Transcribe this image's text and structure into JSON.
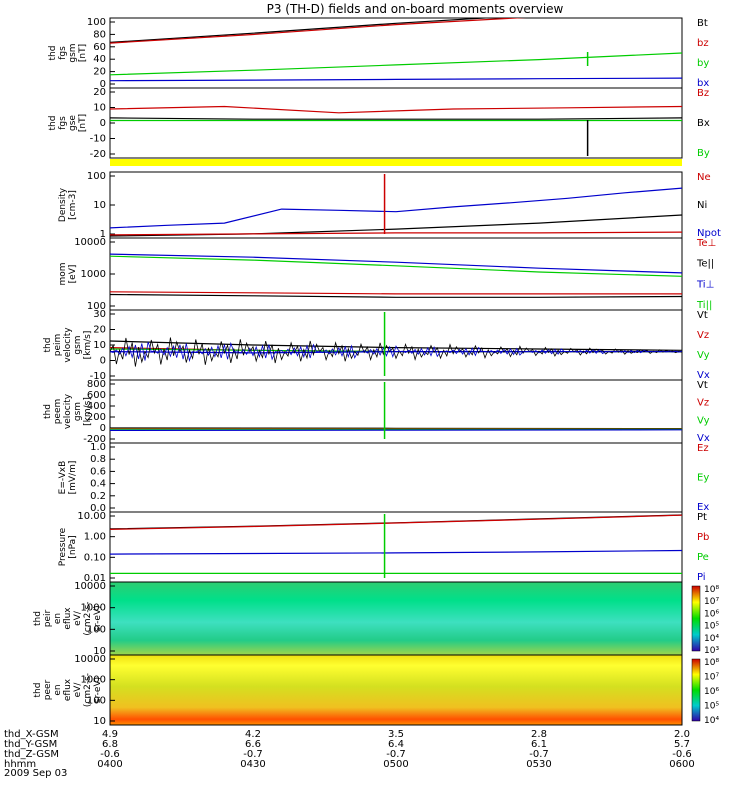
{
  "title": "P3 (TH-D) fields and on-board moments overview",
  "date_label": "2009 Sep 03",
  "colorbar_ticks": {
    "ion": [
      "10⁸",
      "10⁷",
      "10⁶",
      "10⁵",
      "10⁴",
      "10³"
    ],
    "electron": [
      "10⁸",
      "10⁷",
      "10⁶",
      "10⁵",
      "10⁴"
    ]
  },
  "chart_data": [
    {
      "id": "fgs",
      "type": "line",
      "ylabel": [
        "thd",
        "fgs",
        "gsm",
        "[nT]"
      ],
      "ylim": [
        0,
        100
      ],
      "ytick_labels": [
        "100",
        "80",
        "60",
        "40",
        "20",
        "0"
      ],
      "legend": [
        {
          "name": "Bt",
          "color": "#000000"
        },
        {
          "name": "bz",
          "color": "#cc0000"
        },
        {
          "name": "by",
          "color": "#00cc00"
        },
        {
          "name": "bx",
          "color": "#0000cc"
        }
      ],
      "series": [
        {
          "name": "Bt",
          "color": "#000000",
          "x": [
            0,
            0.25,
            0.5,
            0.75,
            1
          ],
          "y": [
            66,
            80,
            95,
            108,
            120
          ]
        },
        {
          "name": "bz",
          "color": "#cc0000",
          "x": [
            0,
            0.25,
            0.5,
            0.75,
            1
          ],
          "y": [
            65,
            78,
            93,
            105,
            118
          ]
        },
        {
          "name": "by",
          "color": "#00cc00",
          "x": [
            0,
            0.25,
            0.5,
            0.75,
            1
          ],
          "y": [
            17,
            24,
            32,
            40,
            50
          ]
        },
        {
          "name": "bx",
          "color": "#0000cc",
          "x": [
            0,
            0.25,
            0.5,
            0.75,
            1
          ],
          "y": [
            8,
            9,
            10,
            11,
            12
          ]
        }
      ]
    },
    {
      "id": "fge",
      "type": "line",
      "ylabel": [
        "thd",
        "fgs",
        "gse",
        "[nT]"
      ],
      "ylim": [
        -30,
        22
      ],
      "ytick_labels": [
        "20",
        "10",
        "0",
        "-10",
        "-20"
      ],
      "legend": [
        {
          "name": "Bz",
          "color": "#cc0000"
        },
        {
          "name": "Bx",
          "color": "#000000"
        },
        {
          "name": "By",
          "color": "#00cc00"
        }
      ],
      "series": [
        {
          "name": "Bz",
          "color": "#cc0000",
          "x": [
            0,
            0.2,
            0.4,
            0.6,
            0.8,
            1
          ],
          "y": [
            7,
            9,
            4,
            7,
            8,
            9
          ]
        },
        {
          "name": "Bx",
          "color": "#000000",
          "x": [
            0,
            0.25,
            0.5,
            0.75,
            1
          ],
          "y": [
            0,
            -1,
            -1,
            -1,
            0
          ]
        },
        {
          "name": "By",
          "color": "#00cc00",
          "x": [
            0,
            0.25,
            0.5,
            0.75,
            1
          ],
          "y": [
            -2,
            -2,
            -2,
            -2,
            -2
          ]
        }
      ]
    },
    {
      "id": "density",
      "type": "line",
      "log": true,
      "ylabel": [
        "Density",
        "[cm-3]"
      ],
      "ylim": [
        1,
        200
      ],
      "ytick_labels": [
        "100",
        "10",
        "1"
      ],
      "legend": [
        {
          "name": "Ne",
          "color": "#cc0000"
        },
        {
          "name": "Ni",
          "color": "#000000"
        },
        {
          "name": "Npot",
          "color": "#0000cc"
        }
      ],
      "series": [
        {
          "name": "Npot",
          "color": "#0000cc",
          "x": [
            0,
            0.1,
            0.2,
            0.3,
            0.4,
            0.5,
            0.6,
            0.7,
            0.8,
            0.9,
            1
          ],
          "y": [
            2,
            2.5,
            3,
            10,
            9,
            8,
            12,
            17,
            25,
            40,
            60
          ]
        },
        {
          "name": "Ni",
          "color": "#000000",
          "x": [
            0,
            0.25,
            0.5,
            0.75,
            1
          ],
          "y": [
            1,
            1.2,
            1.8,
            3,
            6
          ]
        },
        {
          "name": "Ne",
          "color": "#cc0000",
          "x": [
            0,
            0.25,
            0.5,
            0.75,
            1
          ],
          "y": [
            1.1,
            1.2,
            1.3,
            1.3,
            1.4
          ]
        }
      ]
    },
    {
      "id": "temp",
      "type": "line",
      "log": true,
      "ylabel": [
        "mom",
        "[eV]"
      ],
      "ylim": [
        30,
        10000
      ],
      "ytick_labels": [
        "10000",
        "1000",
        "100"
      ],
      "legend": [
        {
          "name": "Te⊥",
          "color": "#cc0000"
        },
        {
          "name": "Te||",
          "color": "#000000"
        },
        {
          "name": "Ti⊥",
          "color": "#0000cc"
        },
        {
          "name": "Ti||",
          "color": "#00cc00"
        }
      ],
      "series": [
        {
          "name": "Ti⊥",
          "color": "#0000cc",
          "x": [
            0,
            0.25,
            0.5,
            0.75,
            1
          ],
          "y": [
            3000,
            2300,
            1500,
            900,
            600
          ]
        },
        {
          "name": "Ti||",
          "color": "#00cc00",
          "x": [
            0,
            0.25,
            0.5,
            0.75,
            1
          ],
          "y": [
            2500,
            1800,
            1100,
            650,
            450
          ]
        },
        {
          "name": "Te⊥",
          "color": "#cc0000",
          "x": [
            0,
            0.25,
            0.5,
            0.75,
            1
          ],
          "y": [
            120,
            110,
            100,
            100,
            100
          ]
        },
        {
          "name": "Te||",
          "color": "#000000",
          "x": [
            0,
            0.25,
            0.5,
            0.75,
            1
          ],
          "y": [
            95,
            85,
            75,
            75,
            80
          ]
        }
      ]
    },
    {
      "id": "vel",
      "type": "line",
      "ylabel": [
        "thd",
        "peim",
        "velocity",
        "gsm",
        "[km/s]"
      ],
      "ylim": [
        -20,
        30
      ],
      "ytick_labels": [
        "30",
        "20",
        "10",
        "0",
        "-10"
      ],
      "legend": [
        {
          "name": "Vt",
          "color": "#000000"
        },
        {
          "name": "Vz",
          "color": "#cc0000"
        },
        {
          "name": "Vy",
          "color": "#00cc00"
        },
        {
          "name": "Vx",
          "color": "#0000cc"
        }
      ],
      "series": [
        {
          "name": "Vt",
          "color": "#000000",
          "x": [
            0,
            0.25,
            0.5,
            0.75,
            1
          ],
          "y": [
            8,
            5,
            3,
            2,
            1
          ]
        },
        {
          "name": "Vz",
          "color": "#cc0000",
          "x": [
            0,
            0.25,
            0.5,
            0.75,
            1
          ],
          "y": [
            3,
            1,
            0,
            0,
            0
          ]
        },
        {
          "name": "Vy",
          "color": "#00cc00",
          "x": [
            0,
            0.25,
            0.5,
            0.75,
            1
          ],
          "y": [
            2,
            1,
            0,
            0,
            0
          ]
        },
        {
          "name": "Vx",
          "color": "#0000cc",
          "x": [
            0,
            0.25,
            0.5,
            0.75,
            1
          ],
          "y": [
            0,
            -1,
            0,
            0,
            0
          ]
        }
      ]
    },
    {
      "id": "vel2",
      "type": "line",
      "ylabel": [
        "thd",
        "peem",
        "velocity",
        "gsm",
        "[km/s]"
      ],
      "ylim": [
        -200,
        800
      ],
      "ytick_labels": [
        "800",
        "600",
        "400",
        "200",
        "0",
        "-200"
      ],
      "legend": [
        {
          "name": "Vt",
          "color": "#000000"
        },
        {
          "name": "Vz",
          "color": "#cc0000"
        },
        {
          "name": "Vy",
          "color": "#00cc00"
        },
        {
          "name": "Vx",
          "color": "#0000cc"
        }
      ],
      "series": [
        {
          "name": "Vt",
          "color": "#000000",
          "x": [
            0,
            0.5,
            1
          ],
          "y": [
            20,
            15,
            10
          ]
        },
        {
          "name": "Vz",
          "color": "#cc0000",
          "x": [
            0,
            0.5,
            1
          ],
          "y": [
            10,
            8,
            5
          ]
        },
        {
          "name": "Vy",
          "color": "#00cc00",
          "x": [
            0,
            0.5,
            1
          ],
          "y": [
            0,
            0,
            0
          ]
        },
        {
          "name": "Vx",
          "color": "#0000cc",
          "x": [
            0,
            0.5,
            1
          ],
          "y": [
            -20,
            -15,
            -10
          ]
        }
      ]
    },
    {
      "id": "efield",
      "type": "line",
      "ylabel": [
        "E=-VxB",
        "[mV/m]"
      ],
      "ylim": [
        0,
        1
      ],
      "ytick_labels": [
        "1.0",
        "0.8",
        "0.6",
        "0.4",
        "0.2",
        "0.0"
      ],
      "legend": [
        {
          "name": "Ez",
          "color": "#cc0000"
        },
        {
          "name": "Ey",
          "color": "#00cc00"
        },
        {
          "name": "Ex",
          "color": "#0000cc"
        }
      ],
      "series": []
    },
    {
      "id": "pressure",
      "type": "line",
      "log": true,
      "ylabel": [
        "Pressure",
        "[nPa]"
      ],
      "ylim": [
        0.01,
        10
      ],
      "ytick_labels": [
        "10.00",
        "1.00",
        "0.10",
        "0.01"
      ],
      "legend": [
        {
          "name": "Pt",
          "color": "#000000"
        },
        {
          "name": "Pb",
          "color": "#cc0000"
        },
        {
          "name": "Pe",
          "color": "#00cc00"
        },
        {
          "name": "Pi",
          "color": "#0000cc"
        }
      ],
      "series": [
        {
          "name": "Pt",
          "color": "#000000",
          "x": [
            0,
            0.25,
            0.5,
            0.75,
            1
          ],
          "y": [
            2.1,
            2.8,
            4,
            6,
            9
          ]
        },
        {
          "name": "Pb",
          "color": "#cc0000",
          "x": [
            0,
            0.25,
            0.5,
            0.75,
            1
          ],
          "y": [
            2,
            2.7,
            3.9,
            5.8,
            8.8
          ]
        },
        {
          "name": "Pi",
          "color": "#0000cc",
          "x": [
            0,
            0.25,
            0.5,
            0.75,
            1
          ],
          "y": [
            0.15,
            0.16,
            0.17,
            0.19,
            0.22
          ]
        },
        {
          "name": "Pe",
          "color": "#00cc00",
          "x": [
            0,
            0.25,
            0.5,
            0.75,
            1
          ],
          "y": [
            0.02,
            0.02,
            0.02,
            0.02,
            0.02
          ]
        }
      ]
    },
    {
      "id": "ion_spec",
      "type": "heatmap",
      "ylabel": [
        "thd",
        "peir",
        "en",
        "eflux",
        "eV/",
        "(cm2-s-",
        "sr-eV)"
      ],
      "ylim": [
        10,
        10000
      ],
      "ytick_labels": [
        "10000",
        "1000",
        "100",
        "10"
      ]
    },
    {
      "id": "el_spec",
      "type": "heatmap",
      "ylabel": [
        "thd",
        "peer",
        "en",
        "eflux",
        "eV/",
        "(cm2-s-",
        "sr-eV)"
      ],
      "ylim": [
        10,
        10000
      ],
      "ytick_labels": [
        "10000",
        "1000",
        "100",
        "10"
      ]
    }
  ],
  "x_axis": {
    "ticks": [
      {
        "x": "4.9",
        "y": "6.8",
        "z": "-0.6",
        "t": "0400"
      },
      {
        "x": "4.2",
        "y": "6.6",
        "z": "-0.7",
        "t": "0430"
      },
      {
        "x": "3.5",
        "y": "6.4",
        "z": "-0.7",
        "t": "0500"
      },
      {
        "x": "2.8",
        "y": "6.1",
        "z": "-0.7",
        "t": "0530"
      },
      {
        "x": "2.0",
        "y": "5.7",
        "z": "-0.6",
        "t": "0600"
      }
    ],
    "row_labels": [
      "thd_X-GSM",
      "thd_Y-GSM",
      "thd_Z-GSM",
      "hhmm"
    ]
  }
}
